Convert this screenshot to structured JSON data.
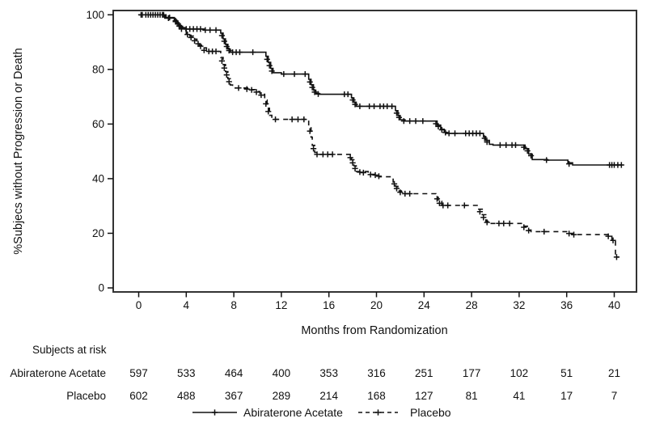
{
  "colors": {
    "line": "#111111",
    "frame": "#333333",
    "background": "#ffffff"
  },
  "chart_data": {
    "type": "line",
    "subtype": "kaplan-meier-step",
    "title": "",
    "xlabel": "Months from Randomization",
    "ylabel": "%Subjecs without Progression or Death",
    "xlim": [
      0,
      42
    ],
    "ylim": [
      0,
      100
    ],
    "xticks": [
      0,
      4,
      8,
      12,
      16,
      20,
      24,
      28,
      32,
      36,
      40
    ],
    "yticks": [
      0,
      20,
      40,
      60,
      80,
      100
    ],
    "grid": false,
    "legend_position": "bottom",
    "series": [
      {
        "name": "Abiraterone Acetate",
        "style": "solid",
        "points": [
          [
            0,
            100
          ],
          [
            2.2,
            98.8
          ],
          [
            3.0,
            98.2
          ],
          [
            3.2,
            97.1
          ],
          [
            3.4,
            96.1
          ],
          [
            3.6,
            95.3
          ],
          [
            3.9,
            94.8
          ],
          [
            5.5,
            94.4
          ],
          [
            6.9,
            93.3
          ],
          [
            7.1,
            91.2
          ],
          [
            7.3,
            89.2
          ],
          [
            7.5,
            87.5
          ],
          [
            7.7,
            86.3
          ],
          [
            10.7,
            84.8
          ],
          [
            10.9,
            82.6
          ],
          [
            11.1,
            80.4
          ],
          [
            11.3,
            78.8
          ],
          [
            12.0,
            78.3
          ],
          [
            14.3,
            76.4
          ],
          [
            14.5,
            74.4
          ],
          [
            14.7,
            72.4
          ],
          [
            14.9,
            71.2
          ],
          [
            15.2,
            70.9
          ],
          [
            17.9,
            69.6
          ],
          [
            18.1,
            68.0
          ],
          [
            18.3,
            66.5
          ],
          [
            21.6,
            64.9
          ],
          [
            21.8,
            63.1
          ],
          [
            22.0,
            61.6
          ],
          [
            22.4,
            61.1
          ],
          [
            25.1,
            59.6
          ],
          [
            25.4,
            58.1
          ],
          [
            25.7,
            57.0
          ],
          [
            25.9,
            56.6
          ],
          [
            29.0,
            55.4
          ],
          [
            29.2,
            54.0
          ],
          [
            29.5,
            52.6
          ],
          [
            29.8,
            52.3
          ],
          [
            32.5,
            51.0
          ],
          [
            32.8,
            49.0
          ],
          [
            33.1,
            47.0
          ],
          [
            34.4,
            46.8
          ],
          [
            36.1,
            45.8
          ],
          [
            36.5,
            45.0
          ],
          [
            40.7,
            45.0
          ]
        ],
        "censors": [
          [
            0.2,
            100
          ],
          [
            0.6,
            100
          ],
          [
            1.0,
            100
          ],
          [
            1.4,
            100
          ],
          [
            1.8,
            100
          ],
          [
            2.1,
            100
          ],
          [
            2.5,
            98.8
          ],
          [
            3.1,
            97.8
          ],
          [
            3.3,
            96.7
          ],
          [
            3.5,
            95.8
          ],
          [
            4.0,
            94.8
          ],
          [
            4.3,
            94.8
          ],
          [
            4.6,
            94.8
          ],
          [
            4.9,
            94.8
          ],
          [
            5.2,
            94.8
          ],
          [
            5.6,
            94.4
          ],
          [
            6.0,
            94.4
          ],
          [
            6.5,
            94.4
          ],
          [
            7.0,
            92.4
          ],
          [
            7.2,
            90.3
          ],
          [
            7.4,
            88.4
          ],
          [
            7.6,
            86.9
          ],
          [
            7.9,
            86.3
          ],
          [
            8.2,
            86.3
          ],
          [
            8.5,
            86.3
          ],
          [
            9.6,
            86.3
          ],
          [
            10.8,
            83.7
          ],
          [
            11.0,
            81.4
          ],
          [
            11.2,
            79.4
          ],
          [
            12.2,
            78.3
          ],
          [
            13.1,
            78.3
          ],
          [
            14.0,
            78.3
          ],
          [
            14.4,
            75.4
          ],
          [
            14.6,
            73.4
          ],
          [
            14.8,
            71.7
          ],
          [
            15.1,
            71.0
          ],
          [
            17.3,
            70.9
          ],
          [
            17.6,
            70.9
          ],
          [
            18.0,
            68.8
          ],
          [
            18.2,
            67.2
          ],
          [
            18.6,
            66.5
          ],
          [
            19.4,
            66.5
          ],
          [
            19.8,
            66.5
          ],
          [
            20.3,
            66.5
          ],
          [
            20.6,
            66.5
          ],
          [
            20.9,
            66.5
          ],
          [
            21.3,
            66.5
          ],
          [
            21.7,
            64.0
          ],
          [
            21.9,
            62.4
          ],
          [
            22.3,
            61.1
          ],
          [
            22.8,
            61.1
          ],
          [
            23.3,
            61.1
          ],
          [
            23.9,
            61.1
          ],
          [
            25.0,
            60.1
          ],
          [
            25.2,
            59.1
          ],
          [
            25.5,
            57.9
          ],
          [
            25.8,
            56.9
          ],
          [
            26.1,
            56.6
          ],
          [
            26.6,
            56.6
          ],
          [
            27.5,
            56.6
          ],
          [
            27.8,
            56.6
          ],
          [
            28.1,
            56.6
          ],
          [
            28.4,
            56.6
          ],
          [
            28.7,
            56.6
          ],
          [
            29.1,
            54.8
          ],
          [
            29.3,
            53.4
          ],
          [
            30.4,
            52.3
          ],
          [
            30.9,
            52.3
          ],
          [
            31.4,
            52.3
          ],
          [
            31.7,
            52.3
          ],
          [
            32.4,
            51.5
          ],
          [
            32.7,
            50.2
          ],
          [
            33.0,
            48.4
          ],
          [
            34.3,
            46.8
          ],
          [
            36.2,
            45.4
          ],
          [
            39.6,
            45.0
          ],
          [
            39.8,
            45.0
          ],
          [
            40.0,
            45.0
          ],
          [
            40.3,
            45.0
          ],
          [
            40.6,
            45.0
          ]
        ]
      },
      {
        "name": "Placebo",
        "style": "dashed",
        "points": [
          [
            0,
            100
          ],
          [
            2.3,
            99.0
          ],
          [
            3.0,
            98.0
          ],
          [
            3.2,
            96.6
          ],
          [
            3.4,
            95.4
          ],
          [
            3.7,
            94.2
          ],
          [
            4.0,
            93.2
          ],
          [
            4.3,
            92.2
          ],
          [
            4.6,
            91.1
          ],
          [
            4.9,
            89.9
          ],
          [
            5.1,
            88.9
          ],
          [
            5.4,
            87.9
          ],
          [
            5.7,
            86.6
          ],
          [
            6.9,
            84.4
          ],
          [
            7.1,
            81.8
          ],
          [
            7.3,
            79.2
          ],
          [
            7.5,
            76.6
          ],
          [
            7.7,
            74.3
          ],
          [
            7.9,
            73.2
          ],
          [
            9.3,
            72.6
          ],
          [
            9.8,
            71.9
          ],
          [
            10.2,
            70.9
          ],
          [
            10.6,
            68.8
          ],
          [
            10.8,
            65.8
          ],
          [
            11.0,
            63.2
          ],
          [
            11.2,
            61.7
          ],
          [
            14.3,
            59.2
          ],
          [
            14.5,
            55.2
          ],
          [
            14.6,
            52.2
          ],
          [
            14.8,
            49.6
          ],
          [
            15.1,
            48.9
          ],
          [
            17.9,
            46.9
          ],
          [
            18.1,
            44.7
          ],
          [
            18.3,
            42.6
          ],
          [
            19.3,
            41.6
          ],
          [
            20.2,
            40.7
          ],
          [
            21.4,
            38.8
          ],
          [
            21.6,
            37.2
          ],
          [
            21.8,
            35.5
          ],
          [
            22.1,
            34.5
          ],
          [
            25.0,
            33.2
          ],
          [
            25.2,
            31.7
          ],
          [
            25.5,
            30.2
          ],
          [
            28.6,
            28.8
          ],
          [
            28.9,
            26.8
          ],
          [
            29.2,
            24.4
          ],
          [
            29.5,
            23.6
          ],
          [
            32.3,
            22.6
          ],
          [
            32.7,
            21.2
          ],
          [
            33.0,
            20.6
          ],
          [
            36.1,
            20.0
          ],
          [
            36.5,
            19.5
          ],
          [
            39.6,
            18.9
          ],
          [
            39.8,
            17.4
          ],
          [
            40.1,
            11.3
          ],
          [
            40.4,
            11.3
          ]
        ],
        "censors": [
          [
            0.3,
            100
          ],
          [
            0.8,
            100
          ],
          [
            1.2,
            100
          ],
          [
            1.6,
            100
          ],
          [
            2.0,
            100
          ],
          [
            2.6,
            99.0
          ],
          [
            3.1,
            97.5
          ],
          [
            3.4,
            95.9
          ],
          [
            3.6,
            94.8
          ],
          [
            4.1,
            92.8
          ],
          [
            4.4,
            91.7
          ],
          [
            4.7,
            90.5
          ],
          [
            5.0,
            89.4
          ],
          [
            5.2,
            88.5
          ],
          [
            5.5,
            87.0
          ],
          [
            5.9,
            86.6
          ],
          [
            6.2,
            86.6
          ],
          [
            6.5,
            86.6
          ],
          [
            7.0,
            83.1
          ],
          [
            7.2,
            80.5
          ],
          [
            7.4,
            78.0
          ],
          [
            7.6,
            75.5
          ],
          [
            8.4,
            73.2
          ],
          [
            9.1,
            72.8
          ],
          [
            9.5,
            72.5
          ],
          [
            9.9,
            71.7
          ],
          [
            10.3,
            70.6
          ],
          [
            10.7,
            67.4
          ],
          [
            10.9,
            64.6
          ],
          [
            11.5,
            61.7
          ],
          [
            12.9,
            61.7
          ],
          [
            13.4,
            61.7
          ],
          [
            13.9,
            61.7
          ],
          [
            14.4,
            57.4
          ],
          [
            14.7,
            51.0
          ],
          [
            15.0,
            48.9
          ],
          [
            15.5,
            48.9
          ],
          [
            15.9,
            48.9
          ],
          [
            16.3,
            48.9
          ],
          [
            17.8,
            47.7
          ],
          [
            18.0,
            45.8
          ],
          [
            18.2,
            43.7
          ],
          [
            18.6,
            42.4
          ],
          [
            18.9,
            42.2
          ],
          [
            19.5,
            41.5
          ],
          [
            19.9,
            41.3
          ],
          [
            20.2,
            40.9
          ],
          [
            21.5,
            38.1
          ],
          [
            21.7,
            36.4
          ],
          [
            22.0,
            35.0
          ],
          [
            22.4,
            34.5
          ],
          [
            22.8,
            34.5
          ],
          [
            25.1,
            32.6
          ],
          [
            25.3,
            31.0
          ],
          [
            25.6,
            30.2
          ],
          [
            26.0,
            30.2
          ],
          [
            27.4,
            30.2
          ],
          [
            28.7,
            27.9
          ],
          [
            29.0,
            25.8
          ],
          [
            29.3,
            24.0
          ],
          [
            30.3,
            23.6
          ],
          [
            30.7,
            23.6
          ],
          [
            31.2,
            23.6
          ],
          [
            32.4,
            22.2
          ],
          [
            32.8,
            21.0
          ],
          [
            34.1,
            20.6
          ],
          [
            36.2,
            19.9
          ],
          [
            36.6,
            19.5
          ],
          [
            39.5,
            18.9
          ],
          [
            39.9,
            17.4
          ],
          [
            40.2,
            11.3
          ]
        ]
      }
    ],
    "legend": [
      {
        "label": "Abiraterone Acetate",
        "style": "solid"
      },
      {
        "label": "Placebo",
        "style": "dashed"
      }
    ],
    "at_risk": {
      "header": "Subjects at risk",
      "times": [
        0,
        4,
        8,
        12,
        16,
        20,
        24,
        28,
        32,
        36,
        40
      ],
      "rows": [
        {
          "label": "Abiraterone Acetate",
          "counts": [
            597,
            533,
            464,
            400,
            353,
            316,
            251,
            177,
            102,
            51,
            21
          ]
        },
        {
          "label": "Placebo",
          "counts": [
            602,
            488,
            367,
            289,
            214,
            168,
            127,
            81,
            41,
            17,
            7
          ]
        }
      ]
    }
  }
}
